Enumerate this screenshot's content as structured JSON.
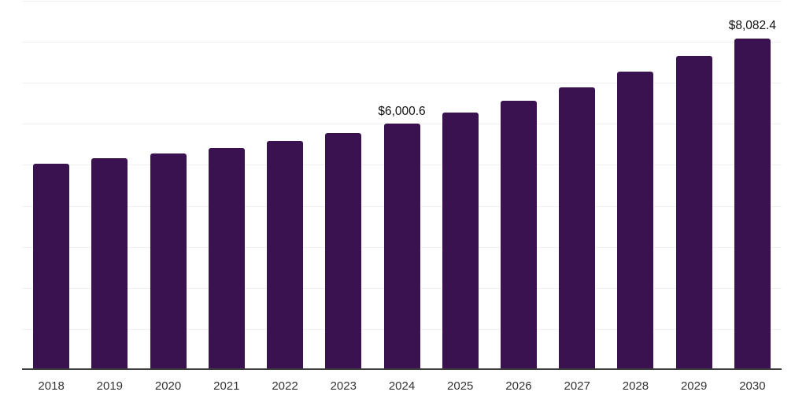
{
  "chart_data": {
    "type": "bar",
    "title": "",
    "xlabel": "",
    "ylabel": "",
    "categories": [
      "2018",
      "2019",
      "2020",
      "2021",
      "2022",
      "2023",
      "2024",
      "2025",
      "2026",
      "2027",
      "2028",
      "2029",
      "2030"
    ],
    "values": [
      5020,
      5155,
      5275,
      5405,
      5580,
      5770,
      6000.6,
      6270,
      6560,
      6885,
      7265,
      7650,
      8082.4
    ],
    "value_labels": [
      "",
      "",
      "",
      "",
      "",
      "",
      "$6,000.6",
      "",
      "",
      "",
      "",
      "",
      "$8,082.4"
    ],
    "ylim": [
      0,
      9000
    ],
    "gridline_step": 1000,
    "grid": true,
    "legend_position": "none",
    "colors": {
      "bar": "#39124f",
      "gridline": "#f0f0f2",
      "axis_line": "#3d3d3d",
      "value_label_text": "#111111",
      "tick_text": "#333333",
      "background": "#ffffff"
    }
  }
}
